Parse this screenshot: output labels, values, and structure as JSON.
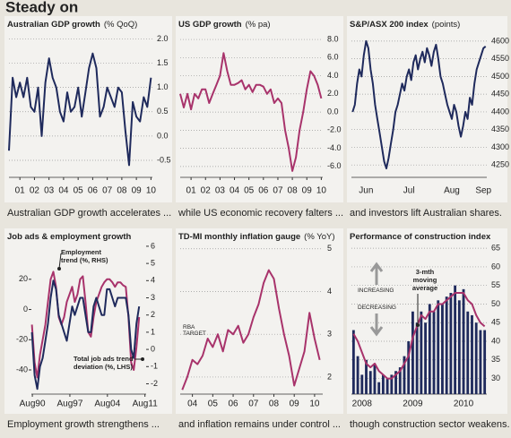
{
  "title": "Steady on",
  "chart_data": [
    {
      "type": "line",
      "title": "Australian GDP growth",
      "units": "(% QoQ)",
      "caption": "Australian GDP growth accelerates ...",
      "x": [
        2000.75,
        2001,
        2001.25,
        2001.5,
        2001.75,
        2002,
        2002.25,
        2002.5,
        2002.75,
        2003,
        2003.25,
        2003.5,
        2003.75,
        2004,
        2004.25,
        2004.5,
        2004.75,
        2005,
        2005.25,
        2005.5,
        2005.75,
        2006,
        2006.25,
        2006.5,
        2006.75,
        2007,
        2007.25,
        2007.5,
        2007.75,
        2008,
        2008.25,
        2008.5,
        2008.75,
        2009,
        2009.25,
        2009.5,
        2009.75,
        2010,
        2010.25,
        2010.5
      ],
      "xlim": [
        2000.75,
        2010.6
      ],
      "xticks": [
        {
          "value": 2001.5,
          "label": "01"
        },
        {
          "value": 2002.5,
          "label": "02"
        },
        {
          "value": 2003.5,
          "label": "03"
        },
        {
          "value": 2004.5,
          "label": "04"
        },
        {
          "value": 2005.5,
          "label": "05"
        },
        {
          "value": 2006.5,
          "label": "06"
        },
        {
          "value": 2007.5,
          "label": "07"
        },
        {
          "value": 2008.5,
          "label": "08"
        },
        {
          "value": 2009.5,
          "label": "09"
        },
        {
          "value": 2010.5,
          "label": "10"
        }
      ],
      "series": [
        {
          "color": "#1f2a5c",
          "values": [
            -0.3,
            1.2,
            0.8,
            1.1,
            0.8,
            1.2,
            0.6,
            0.5,
            1.0,
            0.0,
            1.1,
            1.6,
            1.2,
            1.0,
            0.5,
            0.3,
            0.9,
            0.5,
            0.6,
            1.0,
            0.4,
            0.9,
            1.4,
            1.7,
            1.4,
            0.4,
            0.6,
            1.0,
            0.8,
            0.6,
            1.0,
            0.9,
            0.1,
            -0.6,
            0.7,
            0.4,
            0.3,
            0.8,
            0.6,
            1.2
          ]
        }
      ],
      "ylim": [
        -0.85,
        2.1
      ],
      "yticks": [
        -0.5,
        {
          "value": 0,
          "label": "0.0"
        },
        0.5,
        {
          "value": 1,
          "label": "1.0"
        },
        1.5,
        {
          "value": 2,
          "label": "2.0"
        }
      ],
      "grid": true
    },
    {
      "type": "line",
      "title": "US GDP growth",
      "units": "(% pa)",
      "caption": "while US economic recovery falters ...",
      "x": [
        2000.75,
        2001,
        2001.25,
        2001.5,
        2001.75,
        2002,
        2002.25,
        2002.5,
        2002.75,
        2003,
        2003.25,
        2003.5,
        2003.75,
        2004,
        2004.25,
        2004.5,
        2004.75,
        2005,
        2005.25,
        2005.5,
        2005.75,
        2006,
        2006.25,
        2006.5,
        2006.75,
        2007,
        2007.25,
        2007.5,
        2007.75,
        2008,
        2008.25,
        2008.5,
        2008.75,
        2009,
        2009.25,
        2009.5,
        2009.75,
        2010,
        2010.25,
        2010.5
      ],
      "xlim": [
        2000.75,
        2010.6
      ],
      "xticks": [
        {
          "value": 2001.5,
          "label": "01"
        },
        {
          "value": 2002.5,
          "label": "02"
        },
        {
          "value": 2003.5,
          "label": "03"
        },
        {
          "value": 2004.5,
          "label": "04"
        },
        {
          "value": 2005.5,
          "label": "05"
        },
        {
          "value": 2006.5,
          "label": "06"
        },
        {
          "value": 2007.5,
          "label": "07"
        },
        {
          "value": 2008.5,
          "label": "08"
        },
        {
          "value": 2009.5,
          "label": "09"
        },
        {
          "value": 2010.5,
          "label": "10"
        }
      ],
      "series": [
        {
          "color": "#a8336b",
          "values": [
            2.0,
            0.5,
            2.0,
            0.3,
            2.0,
            1.5,
            2.5,
            2.5,
            1.0,
            2.0,
            3.0,
            4.0,
            6.5,
            4.5,
            3.0,
            3.0,
            3.2,
            3.5,
            2.5,
            3.0,
            2.2,
            3.0,
            3.0,
            2.8,
            2.0,
            2.5,
            1.0,
            1.5,
            1.0,
            -2.0,
            -4.0,
            -6.5,
            -5.0,
            -2.0,
            0.0,
            2.5,
            4.5,
            4.0,
            3.0,
            1.5
          ]
        }
      ],
      "ylim": [
        -7.2,
        8.6
      ],
      "yticks": [
        {
          "value": -6,
          "label": "-6.0"
        },
        {
          "value": -4,
          "label": "-4.0"
        },
        {
          "value": -2,
          "label": "-2.0"
        },
        {
          "value": 0,
          "label": "0.0"
        },
        {
          "value": 2,
          "label": "2.0"
        },
        {
          "value": 4,
          "label": "4.0"
        },
        {
          "value": 6,
          "label": "6.0"
        },
        {
          "value": 8,
          "label": "8.0"
        }
      ],
      "grid": true
    },
    {
      "type": "line",
      "title": "S&P/ASX 200 index",
      "units": "(points)",
      "caption": "and investors lift Australian shares.",
      "categories": [
        null,
        null,
        null,
        null,
        null,
        null,
        "Jun",
        null,
        null,
        null,
        null,
        null,
        null,
        null,
        null,
        null,
        null,
        null,
        null,
        null,
        null,
        null,
        null,
        null,
        null,
        "Jul",
        null,
        null,
        null,
        null,
        null,
        null,
        null,
        null,
        null,
        null,
        null,
        null,
        null,
        null,
        null,
        null,
        null,
        null,
        "Aug",
        null,
        null,
        null,
        null,
        null,
        null,
        null,
        null,
        null,
        null,
        null,
        null,
        null,
        "Sep",
        null
      ],
      "series": [
        {
          "color": "#1f2a5c",
          "values": [
            4400,
            4420,
            4480,
            4520,
            4500,
            4560,
            4600,
            4580,
            4520,
            4480,
            4420,
            4380,
            4340,
            4300,
            4260,
            4240,
            4270,
            4310,
            4350,
            4400,
            4420,
            4450,
            4480,
            4460,
            4500,
            4520,
            4490,
            4540,
            4560,
            4520,
            4550,
            4570,
            4540,
            4580,
            4560,
            4530,
            4570,
            4590,
            4550,
            4500,
            4480,
            4450,
            4420,
            4400,
            4380,
            4420,
            4400,
            4360,
            4330,
            4360,
            4400,
            4380,
            4440,
            4420,
            4480,
            4520,
            4540,
            4560,
            4580,
            4585
          ]
        }
      ],
      "ylim": [
        4215,
        4620
      ],
      "yticks": [
        4250,
        4300,
        4350,
        4400,
        4450,
        4500,
        4550,
        4600
      ],
      "grid": true
    },
    {
      "type": "line",
      "title": "Job ads & employment growth",
      "caption": "Employment growth strengthens ...",
      "x": [
        1990.5,
        1991,
        1991.5,
        1992,
        1992.5,
        1993,
        1993.5,
        1994,
        1994.5,
        1995,
        1995.5,
        1996,
        1996.5,
        1997,
        1997.5,
        1998,
        1998.5,
        1999,
        1999.5,
        2000,
        2000.5,
        2001,
        2001.5,
        2002,
        2002.5,
        2003,
        2003.5,
        2004,
        2004.5,
        2005,
        2005.5,
        2006,
        2006.5,
        2007,
        2007.5,
        2008,
        2008.5,
        2009,
        2009.5,
        2010,
        2010.5
      ],
      "xlim": [
        1990.4,
        2011.8
      ],
      "xticks": [
        {
          "value": 1990.58,
          "label": "Aug90"
        },
        {
          "value": 1997.58,
          "label": "Aug97"
        },
        {
          "value": 2004.58,
          "label": "Aug04"
        },
        {
          "value": 2011.58,
          "label": "Aug11"
        }
      ],
      "series": [
        {
          "name": "Total job ads trend deviation (%, LHS)",
          "color": "#a8336b",
          "values": [
            -10,
            -35,
            -45,
            -30,
            -20,
            -10,
            5,
            20,
            25,
            15,
            -5,
            -10,
            -5,
            5,
            10,
            15,
            5,
            10,
            20,
            22,
            5,
            -15,
            -18,
            -5,
            5,
            10,
            15,
            18,
            20,
            20,
            18,
            15,
            18,
            18,
            16,
            15,
            -5,
            -35,
            -40,
            -25,
            -5
          ]
        },
        {
          "name": "Employment trend (%, RHS)",
          "color": "#1f2a5c",
          "axis": "y2",
          "values": [
            1.0,
            -1.5,
            -2.3,
            -1.0,
            -0.5,
            0.5,
            1.5,
            3.0,
            4.0,
            3.5,
            2.0,
            1.5,
            1.0,
            0.5,
            1.5,
            2.5,
            2.0,
            2.5,
            3.0,
            3.0,
            2.0,
            1.0,
            1.0,
            2.5,
            3.0,
            2.5,
            2.0,
            2.0,
            3.5,
            3.5,
            3.0,
            2.5,
            3.0,
            3.0,
            3.0,
            3.0,
            2.0,
            0.0,
            -0.5,
            1.5,
            2.5
          ]
        }
      ],
      "ylim": [
        -56,
        43
      ],
      "yticks": [
        -40,
        -20,
        0,
        20
      ],
      "y2lim": [
        -2.6,
        6.1
      ],
      "y2ticks": [
        -2,
        -1,
        0,
        1,
        2,
        3,
        4,
        5,
        6
      ],
      "grid": false
    },
    {
      "type": "line",
      "title": "TD-MI monthly inflation gauge",
      "units": "(% YoY)",
      "caption": "and inflation remains under control ...",
      "annotation": "RBA TARGET",
      "x": [
        2004,
        2004.25,
        2004.5,
        2004.75,
        2005,
        2005.25,
        2005.5,
        2005.75,
        2006,
        2006.25,
        2006.5,
        2006.75,
        2007,
        2007.25,
        2007.5,
        2007.75,
        2008,
        2008.25,
        2008.5,
        2008.75,
        2009,
        2009.25,
        2009.5,
        2009.75,
        2010,
        2010.25,
        2010.5,
        2010.75
      ],
      "xlim": [
        2003.9,
        2010.9
      ],
      "xticks": [
        {
          "value": 2004.5,
          "label": "04"
        },
        {
          "value": 2005.5,
          "label": "05"
        },
        {
          "value": 2006.5,
          "label": "06"
        },
        {
          "value": 2007.5,
          "label": "07"
        },
        {
          "value": 2008.5,
          "label": "08"
        },
        {
          "value": 2009.5,
          "label": "09"
        },
        {
          "value": 2010.5,
          "label": "10"
        }
      ],
      "series": [
        {
          "color": "#a8336b",
          "values": [
            1.7,
            2.0,
            2.4,
            2.3,
            2.5,
            2.9,
            2.7,
            3.0,
            2.6,
            3.1,
            3.0,
            3.2,
            2.8,
            3.0,
            3.4,
            3.7,
            4.2,
            4.5,
            4.3,
            3.6,
            3.0,
            2.5,
            1.8,
            2.2,
            2.6,
            3.5,
            2.9,
            2.4
          ]
        }
      ],
      "ylim": [
        1.6,
        5.1
      ],
      "yticks": [
        2,
        3,
        4,
        5
      ],
      "grid": true
    },
    {
      "type": "bar",
      "title": "Performance of construction index",
      "caption": "though construction sector weakens.",
      "annotations": [
        "INCREASING",
        "DECREASING"
      ],
      "categories": [
        null,
        null,
        "2008",
        null,
        null,
        null,
        null,
        null,
        null,
        null,
        null,
        null,
        null,
        null,
        "2009",
        null,
        null,
        null,
        null,
        null,
        null,
        null,
        null,
        null,
        null,
        null,
        "2010",
        null,
        null,
        null,
        null,
        null
      ],
      "series": [
        {
          "color": "#1f2a5c",
          "values": [
            43,
            36,
            31,
            35,
            32,
            34,
            29,
            31,
            30,
            31,
            32,
            33,
            36,
            40,
            48,
            45,
            48,
            45,
            50,
            48,
            51,
            50,
            52,
            53,
            55,
            51,
            54,
            48,
            47,
            45,
            43,
            43
          ]
        },
        {
          "name": "3-mth moving average",
          "type": "line",
          "color": "#a8336b",
          "values": [
            42,
            40,
            37,
            34,
            33,
            34,
            32,
            31,
            30,
            30,
            31,
            32,
            34,
            36,
            41,
            44,
            47,
            46,
            48,
            48,
            50,
            50,
            51,
            52,
            53,
            53,
            53,
            51,
            50,
            47,
            45,
            44
          ]
        }
      ],
      "ylim": [
        25.8,
        66
      ],
      "yticks": [
        30,
        35,
        40,
        45,
        50,
        55,
        60,
        65
      ],
      "grid": true
    }
  ]
}
